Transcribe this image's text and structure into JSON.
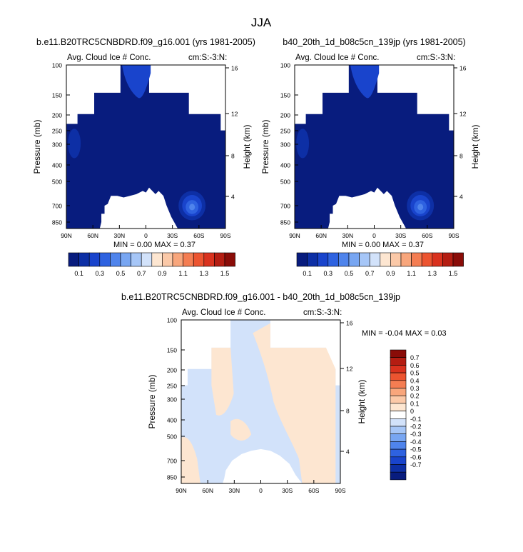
{
  "page_title": "JJA",
  "chart_data": [
    {
      "type": "heatmap",
      "title": "b.e11.B20TRC5CNBDRD.f09_g16.001 (yrs 1981-2005)",
      "subtitle_left": "Avg. Cloud Ice # Conc.",
      "subtitle_right": "cm:S:-3:N:",
      "ylabel": "Pressure (mb)",
      "ylabel_right": "Height (km)",
      "x_ticks": [
        "90N",
        "60N",
        "30N",
        "0",
        "30S",
        "60S",
        "90S"
      ],
      "y_ticks": [
        "100",
        "150",
        "200",
        "250",
        "300",
        "400",
        "500",
        "700",
        "850"
      ],
      "y_ticks_right": [
        "16",
        "12",
        "8",
        "4"
      ],
      "stats": "MIN =  0.00  MAX =  0.37",
      "zmin": 0.0,
      "zmax": 0.37,
      "features": [
        {
          "name": "high-altitude maximum",
          "lat_range": [
            "30N",
            "5N"
          ],
          "pressure_mb": [
            100,
            150
          ],
          "value": 0.2
        },
        {
          "name": "low-level maximum",
          "lat_range": [
            "30S",
            "60S"
          ],
          "pressure_mb": [
            600,
            800
          ],
          "value": 0.37
        }
      ]
    },
    {
      "type": "heatmap",
      "title": "b40_20th_1d_b08c5cn_139jp (yrs 1981-2005)",
      "subtitle_left": "Avg. Cloud Ice # Conc.",
      "subtitle_right": "cm:S:-3:N:",
      "ylabel": "Pressure (mb)",
      "ylabel_right": "Height (km)",
      "x_ticks": [
        "90N",
        "60N",
        "30N",
        "0",
        "30S",
        "60S",
        "90S"
      ],
      "y_ticks": [
        "100",
        "150",
        "200",
        "250",
        "300",
        "400",
        "500",
        "700",
        "850"
      ],
      "y_ticks_right": [
        "16",
        "12",
        "8",
        "4"
      ],
      "stats": "MIN =  0.00  MAX =  0.37",
      "zmin": 0.0,
      "zmax": 0.37,
      "features": [
        {
          "name": "high-altitude maximum",
          "lat_range": [
            "30N",
            "5N"
          ],
          "pressure_mb": [
            100,
            150
          ],
          "value": 0.2
        },
        {
          "name": "low-level maximum",
          "lat_range": [
            "30S",
            "60S"
          ],
          "pressure_mb": [
            600,
            800
          ],
          "value": 0.37
        }
      ]
    },
    {
      "type": "heatmap",
      "title": "b.e11.B20TRC5CNBDRD.f09_g16.001 - b40_20th_1d_b08c5cn_139jp",
      "subtitle_left": "Avg. Cloud Ice # Conc.",
      "subtitle_right": "cm:S:-3:N:",
      "ylabel": "Pressure (mb)",
      "ylabel_right": "Height (km)",
      "x_ticks": [
        "90N",
        "60N",
        "30N",
        "0",
        "30S",
        "60S",
        "90S"
      ],
      "y_ticks": [
        "100",
        "150",
        "200",
        "250",
        "300",
        "400",
        "500",
        "700",
        "850"
      ],
      "y_ticks_right": [
        "16",
        "12",
        "8",
        "4"
      ],
      "stats": "MIN = -0.04  MAX =  0.03",
      "zmin": -0.04,
      "zmax": 0.03
    }
  ],
  "colorbar_main": {
    "labels": [
      "0.1",
      "0.3",
      "0.5",
      "0.7",
      "0.9",
      "1.1",
      "1.3",
      "1.5"
    ],
    "colors": [
      "#081c7e",
      "#0d2fa5",
      "#1944cc",
      "#2e62e0",
      "#4f84ec",
      "#78a6f2",
      "#a6c6f7",
      "#d2e2fa",
      "#fde6d1",
      "#fbc9a8",
      "#f8a67c",
      "#f47d52",
      "#ec5430",
      "#d9321e",
      "#b41d12",
      "#8a0c08"
    ]
  },
  "colorbar_diff": {
    "labels": [
      "0.7",
      "0.6",
      "0.5",
      "0.4",
      "0.3",
      "0.2",
      "0.1",
      "0",
      "-0.1",
      "-0.2",
      "-0.3",
      "-0.4",
      "-0.5",
      "-0.6",
      "-0.7"
    ],
    "colors": [
      "#8a0c08",
      "#b41d12",
      "#d9321e",
      "#ec5430",
      "#f47d52",
      "#f8a67c",
      "#fbc9a8",
      "#fde6d1",
      "#ffffff",
      "#d2e2fa",
      "#a6c6f7",
      "#78a6f2",
      "#4f84ec",
      "#2e62e0",
      "#1944cc",
      "#0d2fa5",
      "#081c7e"
    ]
  }
}
